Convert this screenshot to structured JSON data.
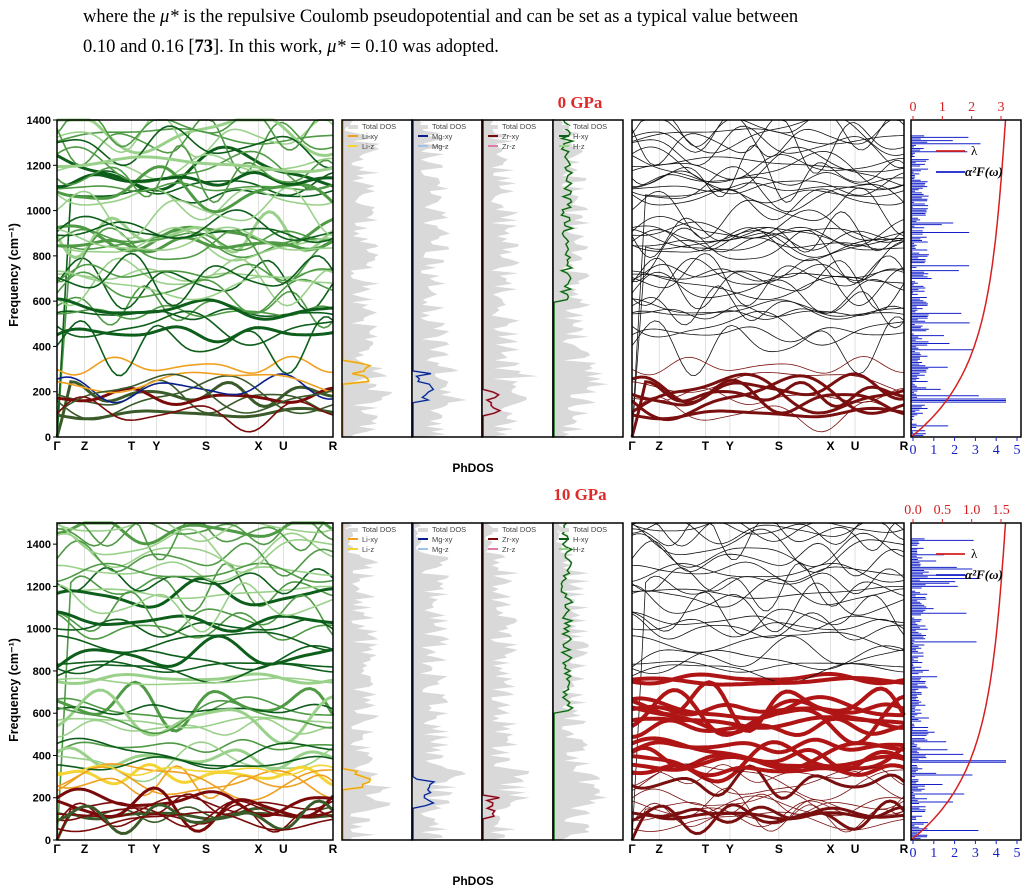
{
  "text": {
    "line1_a": "where the ",
    "line1_mu": "μ*",
    "line1_b": " is the repulsive Coulomb pseudopotential and can be set as a typical value between",
    "line2_a": "0.10 and 0.16 [",
    "line2_ref": "73",
    "line2_b": "]. In this work, ",
    "line2_mu": "μ*",
    "line2_c": " = 0.10 was adopted."
  },
  "colors": {
    "red_title": "#e02a2a",
    "li_xy": "#f0a020",
    "li_z": "#f3d433",
    "mg_xy": "#0b1f8c",
    "mg_z": "#9fc3e6",
    "zr_xy": "#7a0a0a",
    "zr_z": "#e07aa8",
    "h_xy": "#0d5e1a",
    "h_z": "#9ad18a",
    "dos_gray": "#d9d9d9",
    "lambda": "#d61f1f",
    "a2f": "#1521c8"
  },
  "figure": {
    "kpath": [
      "Γ",
      "Z",
      "T",
      "Y",
      "S",
      "X",
      "U",
      "R"
    ],
    "ylabel": "Frequency (cm⁻¹)",
    "dos_xlabel": "PhDOS",
    "panels": [
      {
        "title": "0 GPa",
        "yticks": [
          "0",
          "200",
          "400",
          "600",
          "800",
          "1000",
          "1200",
          "1400"
        ],
        "ymax": 1400,
        "lambda_ticks": [
          "0",
          "1",
          "2",
          "3"
        ],
        "a2f_ticks": [
          "0",
          "1",
          "2",
          "3",
          "4",
          "5"
        ],
        "legend_lambda": "λ",
        "legend_a2f": "α²F(ω)",
        "dos_legends": [
          [
            "Total DOS",
            "Li-xy",
            "Li-z"
          ],
          [
            "Total DOS",
            "Mg-xy",
            "Mg-z"
          ],
          [
            "Total DOS",
            "Zr-xy",
            "Zr-z"
          ],
          [
            "Total DOS",
            "H-xy",
            "H-z"
          ]
        ]
      },
      {
        "title": "10 GPa",
        "yticks": [
          "0",
          "200",
          "400",
          "600",
          "800",
          "1000",
          "1200",
          "1400"
        ],
        "ymax": 1500,
        "lambda_ticks": [
          "0.0",
          "0.5",
          "1.0",
          "1.5"
        ],
        "a2f_ticks": [
          "0",
          "1",
          "2",
          "3",
          "4",
          "5"
        ],
        "legend_lambda": "λ",
        "legend_a2f": "α²F(ω)",
        "dos_legends": [
          [
            "Total DOS",
            "Li-xy",
            "Li-z"
          ],
          [
            "Total DOS",
            "Mg-xy",
            "Mg-z"
          ],
          [
            "Total DOS",
            "Zr-xy",
            "Zr-z"
          ],
          [
            "Total DOS",
            "H-xy",
            "H-z"
          ]
        ]
      }
    ]
  }
}
